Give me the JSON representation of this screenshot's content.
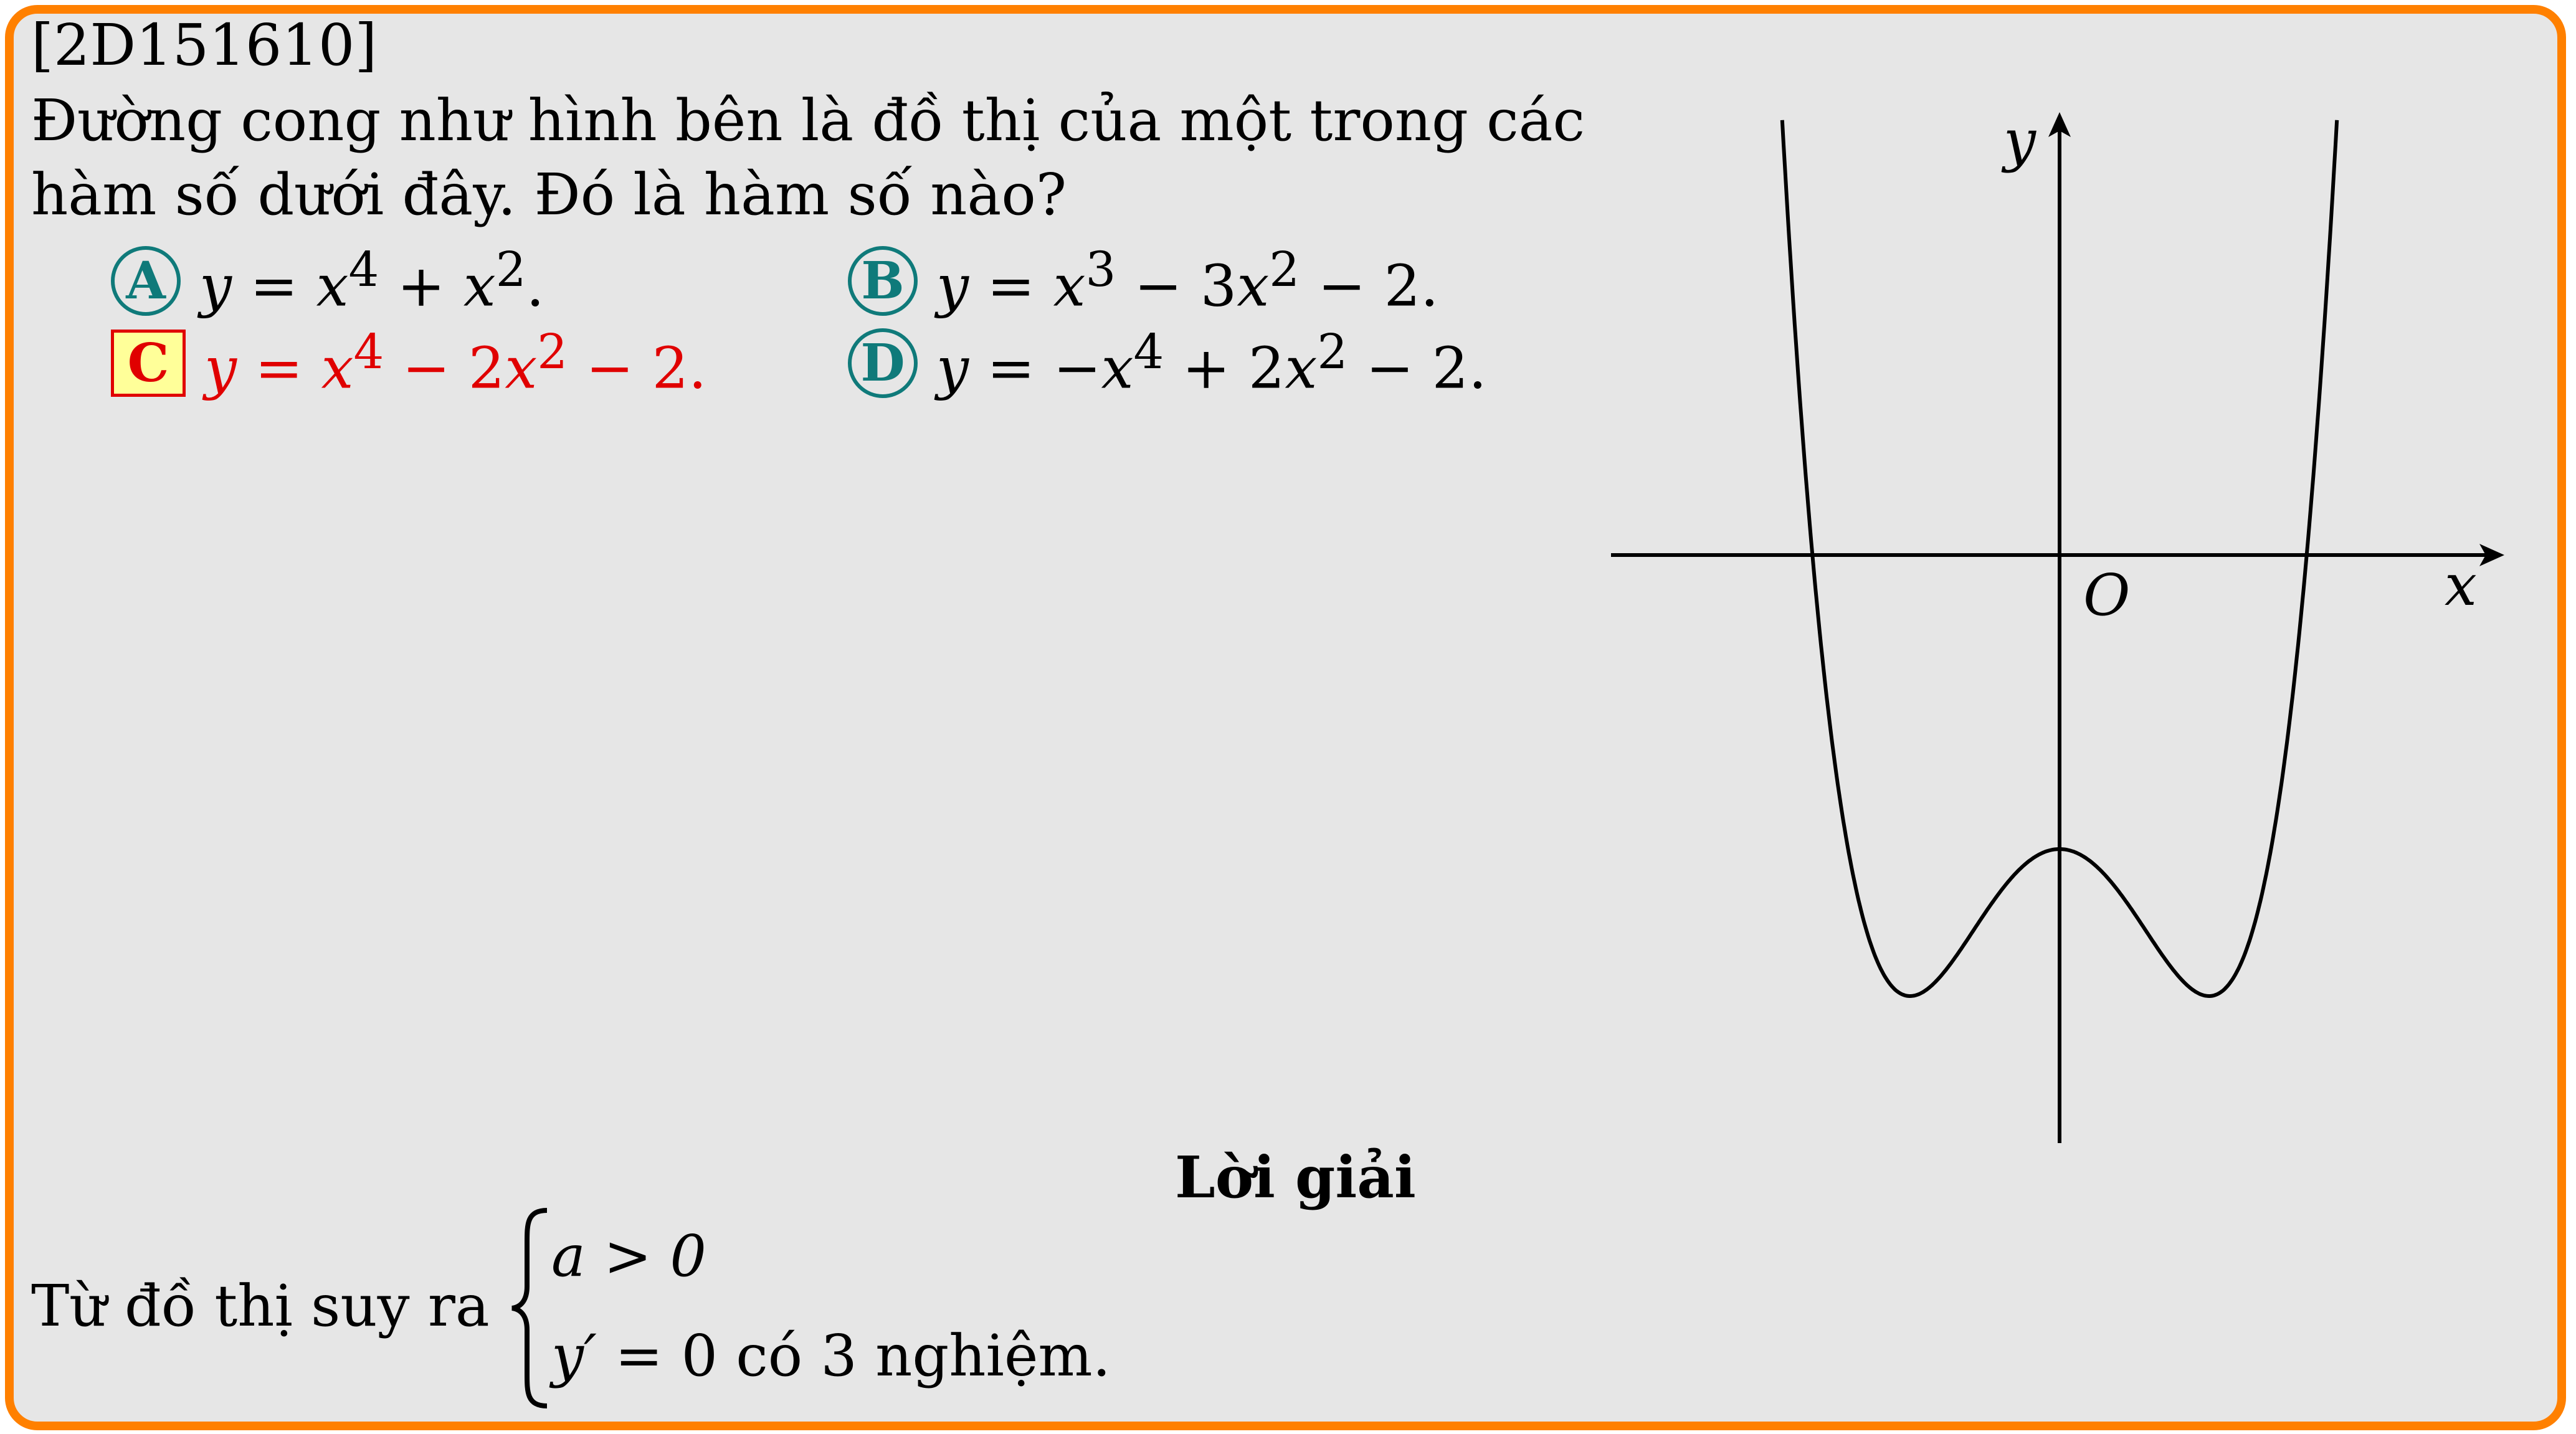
{
  "problem_code": "[2D151610]",
  "question": {
    "line1": "Đường cong như hình bên là đồ thị của một trong các",
    "line2": "hàm số dưới đây. Đó là hàm số nào?"
  },
  "options": [
    {
      "letter": "A",
      "lhs": "y",
      "eq": " = ",
      "t1": "x",
      "e1": "4",
      "op1": " + ",
      "t2": "x",
      "e2": "2",
      "rest": ".",
      "correct": false
    },
    {
      "letter": "B",
      "lhs": "y",
      "eq": " = ",
      "t1": "x",
      "e1": "3",
      "op1": " − 3",
      "t2": "x",
      "e2": "2",
      "rest": " − 2.",
      "correct": false
    },
    {
      "letter": "C",
      "lhs": "y",
      "eq": " = ",
      "t1": "x",
      "e1": "4",
      "op1": " − 2",
      "t2": "x",
      "e2": "2",
      "rest": " − 2.",
      "correct": true
    },
    {
      "letter": "D",
      "lhs": "y",
      "eq": " = −",
      "t1": "x",
      "e1": "4",
      "op1": " + 2",
      "t2": "x",
      "e2": "2",
      "rest": " − 2.",
      "correct": false
    }
  ],
  "graph": {
    "x_label": "x",
    "y_label": "y",
    "origin_label": "O",
    "function": "y = x^4 - 2x^2 - 2"
  },
  "solution": {
    "heading": "Lời giải",
    "lead": "Từ đồ thị suy ra",
    "cond1": "a > 0",
    "cond2_lhs": "y′",
    "cond2_rest": " = 0 có 3 nghiệm."
  },
  "colors": {
    "border": "#ff8000",
    "background": "#e6e6e6",
    "badge": "#0f7a7a",
    "correct": "#e00000",
    "correct_fill": "#ffff99"
  }
}
